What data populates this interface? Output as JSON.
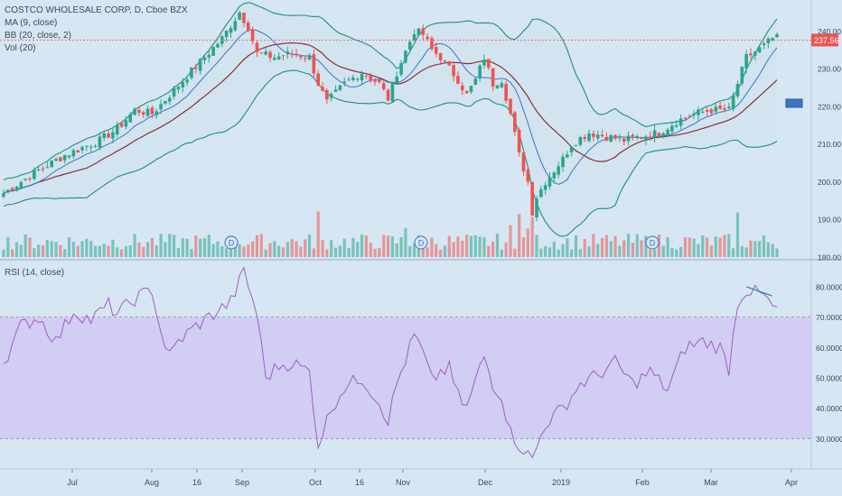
{
  "header": {
    "symbol_line": "COSTCO WHOLESALE CORP, D, Cboe BZX",
    "indicators": [
      "MA (9, close)",
      "BB (20, close, 2)",
      "Vol (20)"
    ]
  },
  "rsi_pane": {
    "label": "RSI (14, close)"
  },
  "last_price_label": "237.56",
  "dividend_marker": "D",
  "colors": {
    "background": "#d6e6f2",
    "up": "#2aa58c",
    "down": "#ef5350",
    "ma": "#3f73c6",
    "basis": "#8b2e3a",
    "bands": "#1f8f7f",
    "band_fill": "#cfe3ee",
    "rsi_line": "#a05ec4",
    "rsi_fill": "#cfc7f3",
    "last_price_line": "#e57373"
  },
  "chart_data": [
    {
      "type": "candlestick",
      "title": "COSTCO WHOLESALE CORP, D, Cboe BZX",
      "y_ticks": [
        "240.00",
        "230.00",
        "220.00",
        "210.00",
        "200.00",
        "190.00",
        "180.00"
      ],
      "ylim": [
        180,
        247
      ],
      "x_ticks": [
        "Jul",
        "Aug",
        "16",
        "Sep",
        "Oct",
        "16",
        "Nov",
        "Dec",
        "2019",
        "Feb",
        "Mar",
        "Apr"
      ],
      "last_price": 237.56,
      "close_anchors": [
        [
          0,
          197
        ],
        [
          8,
          203
        ],
        [
          14,
          207
        ],
        [
          18,
          209
        ],
        [
          22,
          211
        ],
        [
          26,
          214
        ],
        [
          30,
          219
        ],
        [
          34,
          218
        ],
        [
          38,
          223
        ],
        [
          42,
          228
        ],
        [
          46,
          233
        ],
        [
          50,
          238
        ],
        [
          54,
          245
        ],
        [
          56,
          241
        ],
        [
          58,
          234
        ],
        [
          62,
          233
        ],
        [
          66,
          234
        ],
        [
          70,
          233
        ],
        [
          72,
          226
        ],
        [
          74,
          221
        ],
        [
          78,
          226
        ],
        [
          82,
          229
        ],
        [
          86,
          226
        ],
        [
          88,
          222
        ],
        [
          90,
          229
        ],
        [
          94,
          240
        ],
        [
          96,
          239
        ],
        [
          98,
          235
        ],
        [
          100,
          233
        ],
        [
          102,
          230
        ],
        [
          104,
          227
        ],
        [
          106,
          223
        ],
        [
          108,
          227
        ],
        [
          110,
          233
        ],
        [
          112,
          226
        ],
        [
          114,
          227
        ],
        [
          116,
          218
        ],
        [
          118,
          207
        ],
        [
          120,
          200
        ],
        [
          121,
          192
        ],
        [
          122,
          196
        ],
        [
          124,
          200
        ],
        [
          126,
          203
        ],
        [
          128,
          206
        ],
        [
          130,
          210
        ],
        [
          134,
          213
        ],
        [
          138,
          212
        ],
        [
          142,
          211
        ],
        [
          146,
          212
        ],
        [
          150,
          213
        ],
        [
          154,
          216
        ],
        [
          158,
          218
        ],
        [
          162,
          219
        ],
        [
          166,
          219
        ],
        [
          168,
          226
        ],
        [
          170,
          233
        ],
        [
          174,
          236
        ],
        [
          176,
          238
        ]
      ],
      "dividend_markers": [
        "Sep",
        "Nov",
        "Feb"
      ]
    },
    {
      "type": "line",
      "title": "RSI (14, close)",
      "y_ticks": [
        "80.0000",
        "70.0000",
        "60.0000",
        "50.0000",
        "40.0000",
        "30.0000"
      ],
      "ylim": [
        20,
        88
      ],
      "band": [
        30,
        70
      ],
      "anchors": [
        [
          0,
          55
        ],
        [
          4,
          67
        ],
        [
          8,
          70
        ],
        [
          12,
          62
        ],
        [
          16,
          72
        ],
        [
          20,
          69
        ],
        [
          24,
          74
        ],
        [
          26,
          71
        ],
        [
          30,
          76
        ],
        [
          34,
          79
        ],
        [
          36,
          65
        ],
        [
          38,
          57
        ],
        [
          40,
          62
        ],
        [
          44,
          67
        ],
        [
          48,
          71
        ],
        [
          52,
          75
        ],
        [
          55,
          85
        ],
        [
          58,
          71
        ],
        [
          60,
          50
        ],
        [
          63,
          54
        ],
        [
          66,
          55
        ],
        [
          70,
          52
        ],
        [
          72,
          28
        ],
        [
          75,
          40
        ],
        [
          78,
          47
        ],
        [
          82,
          50
        ],
        [
          86,
          42
        ],
        [
          88,
          36
        ],
        [
          90,
          48
        ],
        [
          94,
          64
        ],
        [
          96,
          58
        ],
        [
          98,
          49
        ],
        [
          100,
          52
        ],
        [
          102,
          53
        ],
        [
          104,
          44
        ],
        [
          106,
          40
        ],
        [
          108,
          49
        ],
        [
          110,
          57
        ],
        [
          112,
          48
        ],
        [
          114,
          44
        ],
        [
          116,
          32
        ],
        [
          118,
          28
        ],
        [
          121,
          23
        ],
        [
          124,
          35
        ],
        [
          128,
          40
        ],
        [
          132,
          48
        ],
        [
          136,
          51
        ],
        [
          140,
          55
        ],
        [
          144,
          48
        ],
        [
          148,
          52
        ],
        [
          152,
          46
        ],
        [
          156,
          60
        ],
        [
          160,
          62
        ],
        [
          164,
          60
        ],
        [
          166,
          53
        ],
        [
          168,
          75
        ],
        [
          170,
          79
        ],
        [
          172,
          78
        ],
        [
          174,
          77
        ],
        [
          176,
          73
        ]
      ],
      "divergence_line": [
        [
          170,
          80
        ],
        [
          180,
          77
        ]
      ]
    }
  ]
}
